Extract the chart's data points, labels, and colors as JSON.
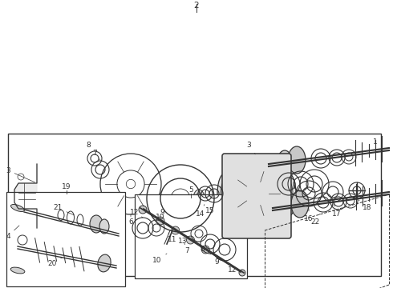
{
  "bg_color": "#ffffff",
  "line_color": "#333333",
  "fig_width": 4.9,
  "fig_height": 3.6,
  "dpi": 100,
  "font_size": 6.5
}
